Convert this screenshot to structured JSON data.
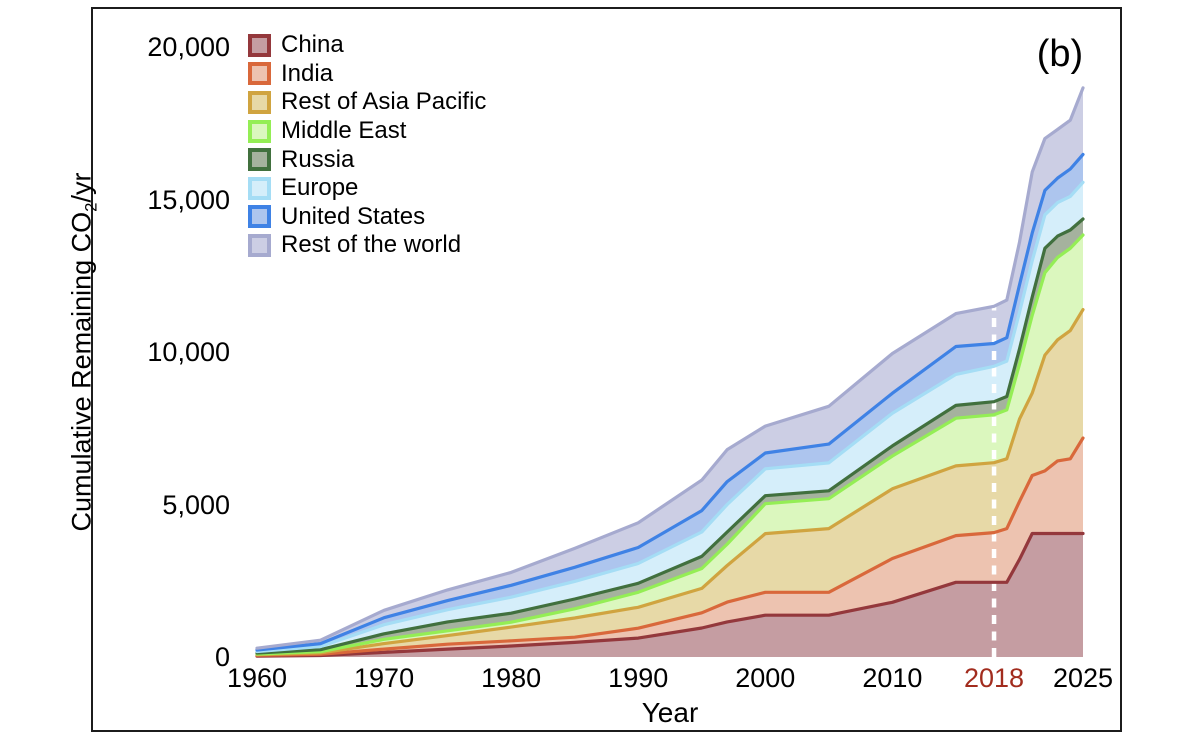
{
  "panel_label": "(b)",
  "axes": {
    "y_label_prefix": "Cumulative Remaining CO",
    "y_label_sub": "2",
    "y_label_suffix": "/yr",
    "x_label": "Year",
    "y_range": [
      0,
      20000
    ],
    "x_range": [
      1960,
      2025
    ],
    "y_ticks": [
      {
        "value": 0,
        "label": "0"
      },
      {
        "value": 5000,
        "label": "5,000"
      },
      {
        "value": 10000,
        "label": "10,000"
      },
      {
        "value": 15000,
        "label": "15,000"
      },
      {
        "value": 20000,
        "label": "20,000"
      }
    ],
    "x_ticks": [
      {
        "value": 1960,
        "label": "1960",
        "highlight": false
      },
      {
        "value": 1970,
        "label": "1970",
        "highlight": false
      },
      {
        "value": 1980,
        "label": "1980",
        "highlight": false
      },
      {
        "value": 1990,
        "label": "1990",
        "highlight": false
      },
      {
        "value": 2000,
        "label": "2000",
        "highlight": false
      },
      {
        "value": 2010,
        "label": "2010",
        "highlight": false
      },
      {
        "value": 2018,
        "label": "2018",
        "highlight": true
      },
      {
        "value": 2025,
        "label": "2025",
        "highlight": false
      }
    ]
  },
  "colors": {
    "frame": "#1c1c1c",
    "text": "#000000",
    "highlight_tick": "#A22C1E",
    "dashed_line": "#ffffff",
    "background": "#ffffff"
  },
  "annotation": {
    "dashed_line_year": 2018
  },
  "chart_data": {
    "type": "area",
    "stacked": true,
    "note": "values are cumulative stack-top boundaries (units: Gt CO2 cumulative), stack order bottom-to-top as listed",
    "title": "",
    "xlabel": "Year",
    "ylabel": "Cumulative Remaining CO2/yr",
    "xlim": [
      1960,
      2025
    ],
    "ylim": [
      0,
      20000
    ],
    "grid": false,
    "legend_position": "upper-left-inside",
    "x": [
      1960,
      1965,
      1970,
      1975,
      1980,
      1985,
      1990,
      1995,
      1997,
      2000,
      2005,
      2010,
      2015,
      2018,
      2019,
      2020,
      2021,
      2022,
      2023,
      2024,
      2025
    ],
    "series": [
      {
        "name": "China",
        "line": "#94383C",
        "fill": "#C59DA2",
        "values": [
          30,
          50,
          150,
          260,
          360,
          480,
          620,
          950,
          1150,
          1370,
          1370,
          1795,
          2450,
          2450,
          2450,
          3200,
          4050,
          4050,
          4050,
          4050,
          4050
        ]
      },
      {
        "name": "India",
        "line": "#D9683B",
        "fill": "#EDC3B0",
        "values": [
          55,
          90,
          260,
          420,
          530,
          650,
          945,
          1450,
          1800,
          2120,
          2120,
          3230,
          3980,
          4080,
          4210,
          5100,
          5950,
          6100,
          6430,
          6500,
          7180
        ]
      },
      {
        "name": "Rest of Asia Pacific",
        "line": "#D0A440",
        "fill": "#E7D9A7",
        "values": [
          80,
          135,
          440,
          700,
          980,
          1280,
          1630,
          2250,
          3000,
          4045,
          4210,
          5515,
          6265,
          6370,
          6500,
          7800,
          8650,
          9900,
          10400,
          10700,
          11390
        ]
      },
      {
        "name": "Middle East",
        "line": "#94EE55",
        "fill": "#DBF7BE",
        "values": [
          100,
          175,
          580,
          860,
          1140,
          1580,
          2120,
          2900,
          3700,
          5025,
          5190,
          6590,
          7830,
          7940,
          8100,
          9600,
          11200,
          12600,
          13100,
          13400,
          13835
        ]
      },
      {
        "name": "Russia",
        "line": "#41703E",
        "fill": "#A5B29E",
        "values": [
          130,
          240,
          760,
          1150,
          1435,
          1900,
          2415,
          3300,
          4100,
          5290,
          5450,
          6920,
          8250,
          8370,
          8540,
          10100,
          11800,
          13400,
          13800,
          14000,
          14360
        ]
      },
      {
        "name": "Europe",
        "line": "#A5DDF5",
        "fill": "#D5EEFA",
        "values": [
          180,
          345,
          1060,
          1550,
          1960,
          2480,
          3065,
          4100,
          5000,
          6170,
          6365,
          7995,
          9265,
          9530,
          9700,
          11300,
          12990,
          14500,
          14900,
          15100,
          15565
        ]
      },
      {
        "name": "United States",
        "line": "#3F82E5",
        "fill": "#ADC5EE",
        "values": [
          230,
          440,
          1290,
          1850,
          2350,
          2940,
          3590,
          4800,
          5750,
          6690,
          6980,
          8650,
          10180,
          10280,
          10470,
          12200,
          13900,
          15300,
          15700,
          16000,
          16480
        ]
      },
      {
        "name": "Rest of the world",
        "line": "#A6AACF",
        "fill": "#CCCEE4",
        "values": [
          290,
          550,
          1530,
          2200,
          2775,
          3560,
          4400,
          5800,
          6800,
          7570,
          8220,
          9950,
          11260,
          11500,
          11700,
          13600,
          15900,
          17000,
          17300,
          17600,
          18660
        ]
      }
    ]
  }
}
